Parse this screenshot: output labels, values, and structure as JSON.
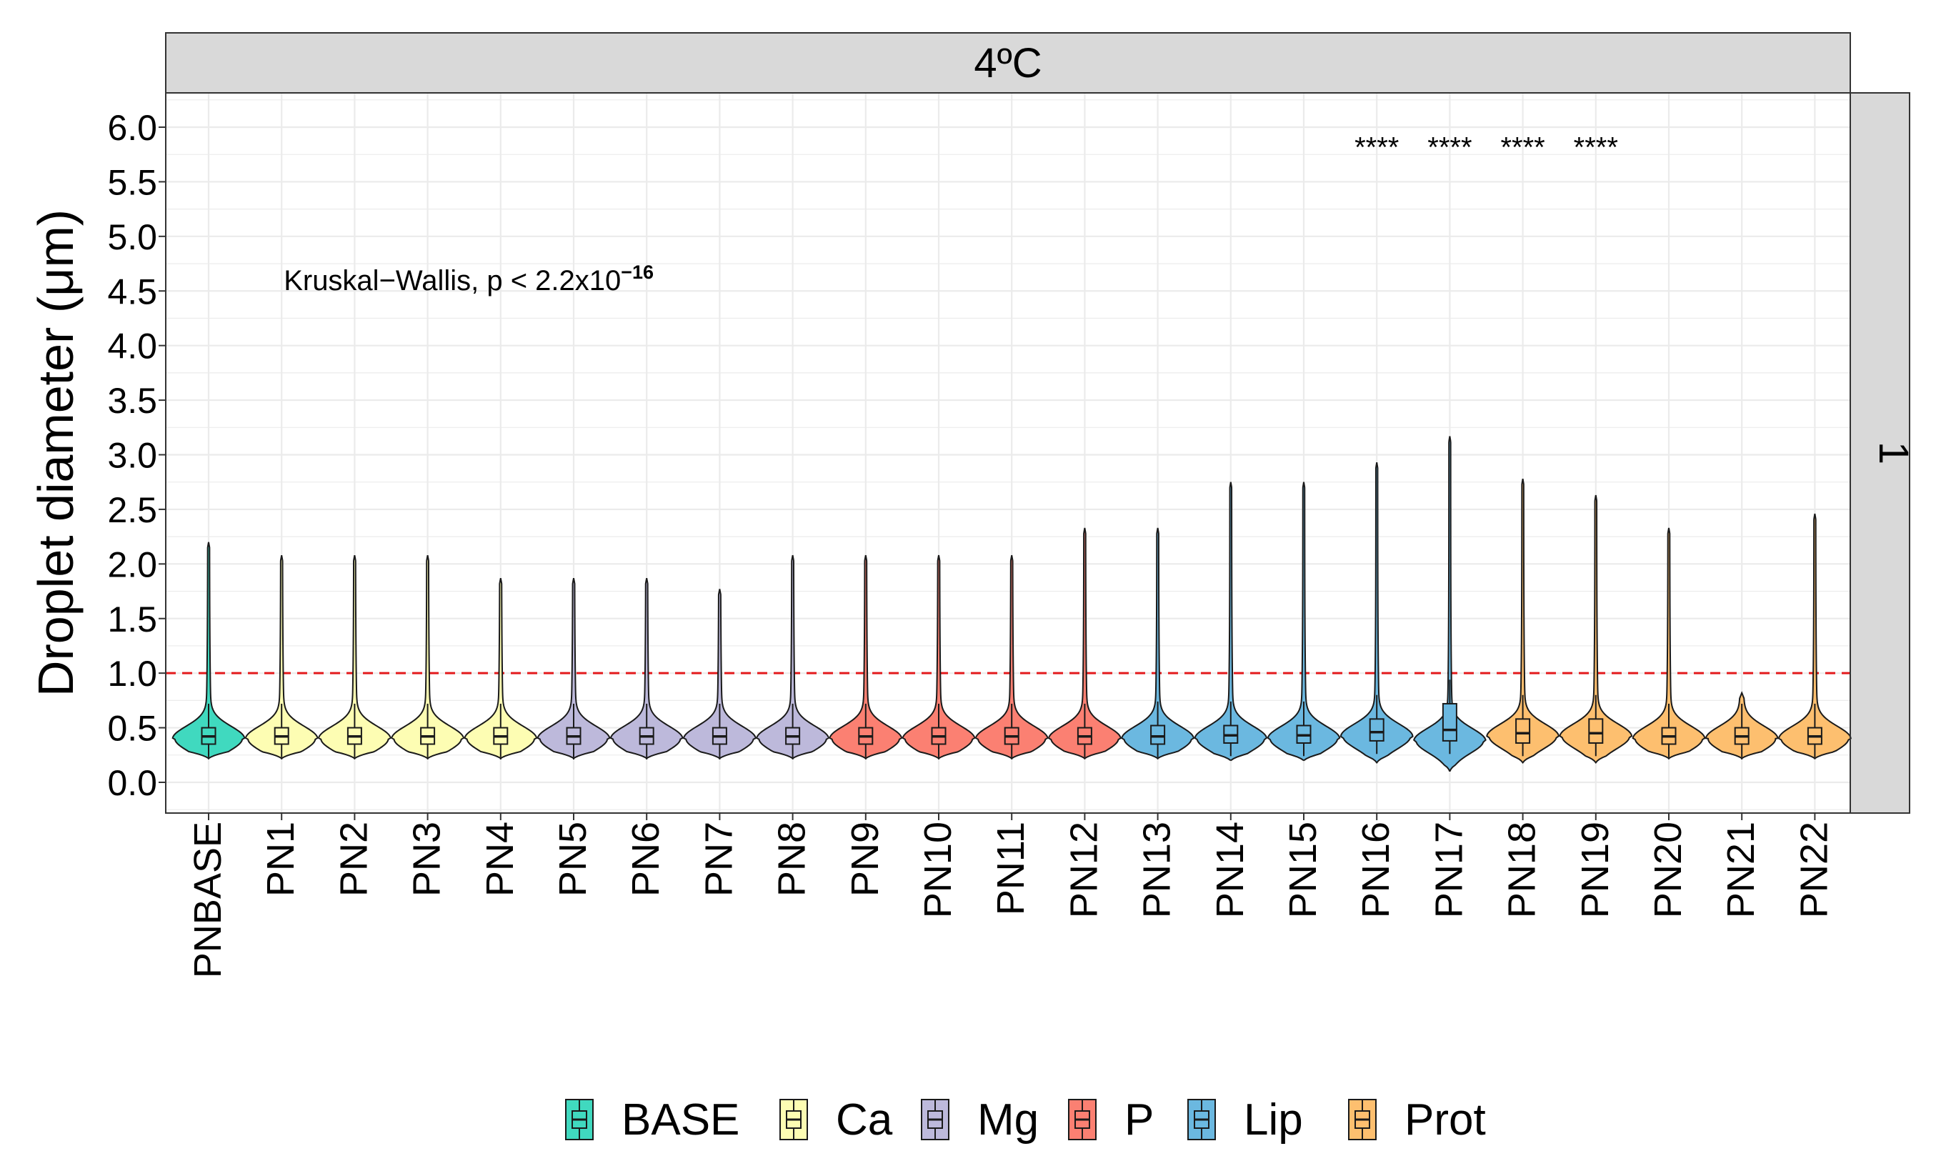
{
  "chart_data": {
    "type": "violin",
    "facet_label_top": "4ºC",
    "facet_label_right": "1",
    "ylabel": "Droplet diameter (μm)",
    "xlabel": "",
    "ylim": [
      -0.3,
      6.3
    ],
    "yticks": [
      0.0,
      0.5,
      1.0,
      1.5,
      2.0,
      2.5,
      3.0,
      3.5,
      4.0,
      4.5,
      5.0,
      5.5,
      6.0
    ],
    "ytick_labels": [
      "0.0",
      "0.5",
      "1.0",
      "1.5",
      "2.0",
      "2.5",
      "3.0",
      "3.5",
      "4.0",
      "4.5",
      "5.0",
      "5.5",
      "6.0"
    ],
    "grid": true,
    "reference_line": {
      "y": 1.0,
      "color": "#e31a1c",
      "style": "dashed"
    },
    "annotation": {
      "text": "Kruskal−Wallis, p < 2.2x10",
      "superscript": "−16",
      "x_category": "PN1",
      "y": 4.6
    },
    "significance": [
      {
        "category": "PN16",
        "label": "****"
      },
      {
        "category": "PN17",
        "label": "****"
      },
      {
        "category": "PN18",
        "label": "****"
      },
      {
        "category": "PN19",
        "label": "****"
      }
    ],
    "significance_y": 5.82,
    "legend": {
      "position": "bottom",
      "items": [
        {
          "name": "BASE",
          "color": "#40d9bf"
        },
        {
          "name": "Ca",
          "color": "#fdfdb3"
        },
        {
          "name": "Mg",
          "color": "#bdb9db"
        },
        {
          "name": "P",
          "color": "#fb8072"
        },
        {
          "name": "Lip",
          "color": "#6bb8e0"
        },
        {
          "name": "Prot",
          "color": "#fdbf6f"
        }
      ]
    },
    "categories": [
      "PNBASE",
      "PN1",
      "PN2",
      "PN3",
      "PN4",
      "PN5",
      "PN6",
      "PN7",
      "PN8",
      "PN9",
      "PN10",
      "PN11",
      "PN12",
      "PN13",
      "PN14",
      "PN15",
      "PN16",
      "PN17",
      "PN18",
      "PN19",
      "PN20",
      "PN21",
      "PN22"
    ],
    "groups": [
      "BASE",
      "Ca",
      "Ca",
      "Ca",
      "Ca",
      "Mg",
      "Mg",
      "Mg",
      "Mg",
      "P",
      "P",
      "P",
      "P",
      "Lip",
      "Lip",
      "Lip",
      "Lip",
      "Lip",
      "Prot",
      "Prot",
      "Prot",
      "Prot",
      "Prot"
    ],
    "violin_min": [
      0.22,
      0.22,
      0.22,
      0.22,
      0.22,
      0.22,
      0.22,
      0.22,
      0.22,
      0.22,
      0.22,
      0.22,
      0.22,
      0.22,
      0.2,
      0.2,
      0.18,
      0.1,
      0.18,
      0.18,
      0.22,
      0.22,
      0.22
    ],
    "violin_max": [
      2.2,
      2.08,
      2.08,
      2.08,
      1.87,
      1.87,
      1.87,
      1.77,
      2.08,
      2.08,
      2.08,
      2.08,
      2.33,
      2.33,
      2.75,
      2.75,
      2.93,
      3.17,
      2.78,
      2.63,
      2.33,
      0.82,
      2.46
    ],
    "q1": [
      0.35,
      0.35,
      0.35,
      0.35,
      0.35,
      0.35,
      0.35,
      0.35,
      0.35,
      0.35,
      0.35,
      0.35,
      0.35,
      0.35,
      0.36,
      0.36,
      0.38,
      0.38,
      0.36,
      0.36,
      0.35,
      0.35,
      0.35
    ],
    "median": [
      0.42,
      0.42,
      0.42,
      0.42,
      0.42,
      0.42,
      0.42,
      0.42,
      0.42,
      0.42,
      0.42,
      0.42,
      0.42,
      0.42,
      0.43,
      0.43,
      0.46,
      0.48,
      0.45,
      0.45,
      0.42,
      0.42,
      0.42
    ],
    "q3": [
      0.5,
      0.5,
      0.5,
      0.5,
      0.5,
      0.5,
      0.5,
      0.5,
      0.5,
      0.5,
      0.5,
      0.5,
      0.5,
      0.52,
      0.52,
      0.52,
      0.58,
      0.72,
      0.58,
      0.58,
      0.5,
      0.5,
      0.5
    ],
    "mode": [
      0.4,
      0.4,
      0.4,
      0.4,
      0.4,
      0.4,
      0.4,
      0.4,
      0.4,
      0.4,
      0.4,
      0.4,
      0.4,
      0.4,
      0.4,
      0.4,
      0.42,
      0.38,
      0.42,
      0.42,
      0.4,
      0.4,
      0.4
    ]
  }
}
